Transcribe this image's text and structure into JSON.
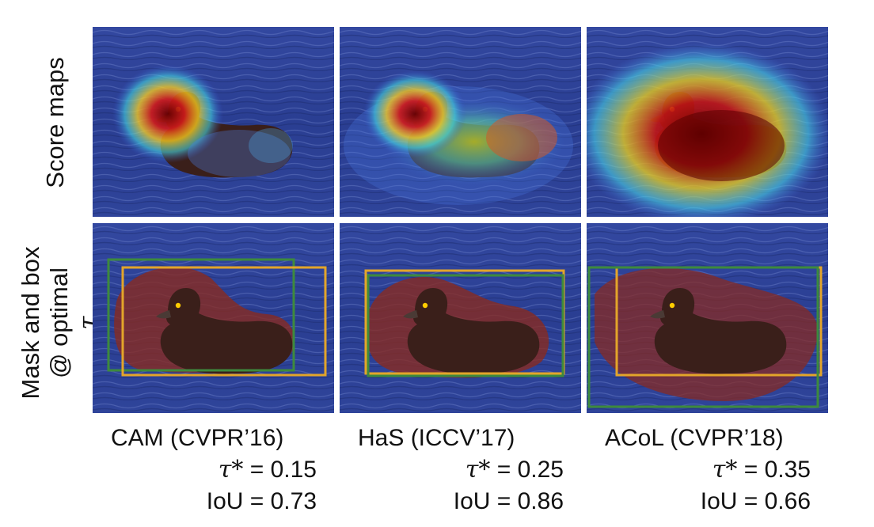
{
  "rows": [
    {
      "label_lines": [
        "Score maps"
      ]
    },
    {
      "label_lines": [
        "Mask and box",
        "@ optimal"
      ],
      "label_symbol": "τ"
    }
  ],
  "methods": [
    {
      "name": "CAM (CVPR’16)",
      "tau_symbol": "τ*",
      "tau_value": "= 0.15",
      "iou": "IoU = 0.73"
    },
    {
      "name": "HaS (ICCV’17)",
      "tau_symbol": "τ*",
      "tau_value": "= 0.25",
      "iou": "IoU = 0.86"
    },
    {
      "name": "ACoL (CVPR’18)",
      "tau_symbol": "τ*",
      "tau_value": "= 0.35",
      "iou": "IoU = 0.66"
    }
  ],
  "colors": {
    "water": "#2a3f8f",
    "mask": "#8b2a1e",
    "gt_box": "#e3a52a",
    "pred_box": "#3d8a3d"
  }
}
